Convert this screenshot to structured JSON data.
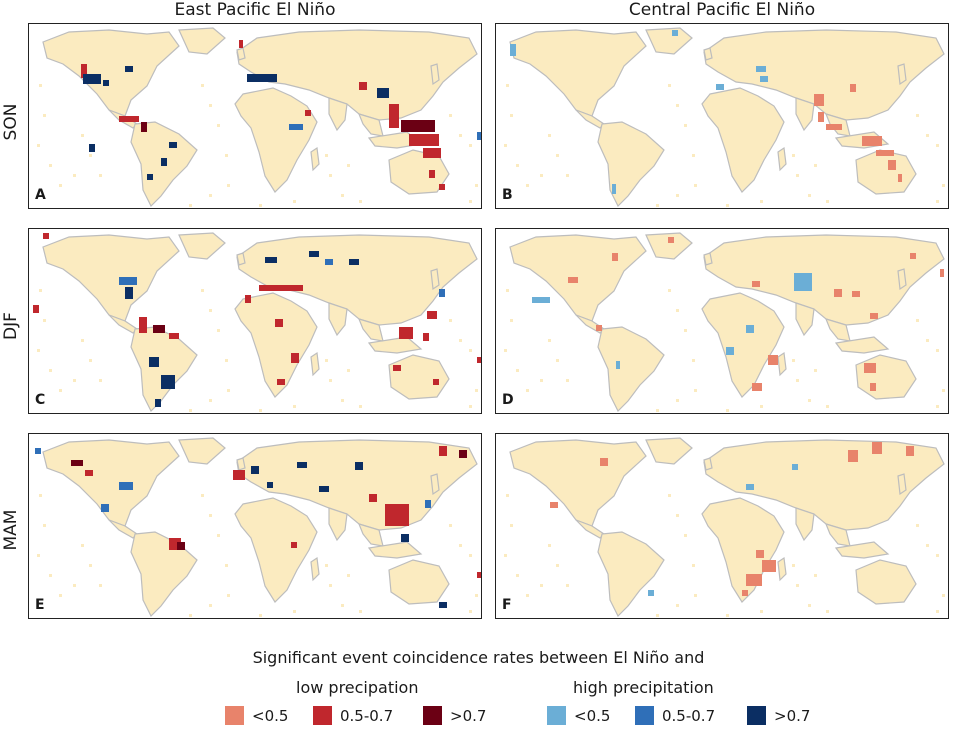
{
  "columns": [
    "East Pacific El Niño",
    "Central Pacific El Niño"
  ],
  "rows": [
    "SON",
    "DJF",
    "MAM"
  ],
  "panels": [
    "A",
    "B",
    "C",
    "D",
    "E",
    "F"
  ],
  "legend": {
    "title": "Significant event coincidence rates between El Niño and",
    "low_label": "low precipation",
    "high_label": "high precipitation",
    "low_items": [
      {
        "label": "<0.5",
        "color": "#e8836b"
      },
      {
        "label": "0.5-0.7",
        "color": "#c0272d"
      },
      {
        "label": ">0.7",
        "color": "#6b0014"
      }
    ],
    "high_items": [
      {
        "label": "<0.5",
        "color": "#6baed6"
      },
      {
        "label": "0.5-0.7",
        "color": "#2f6fb8"
      },
      {
        "label": ">0.7",
        "color": "#0b2e63"
      }
    ]
  },
  "colors": {
    "land": "#fbebc0",
    "coast": "#bdbdbd"
  }
}
